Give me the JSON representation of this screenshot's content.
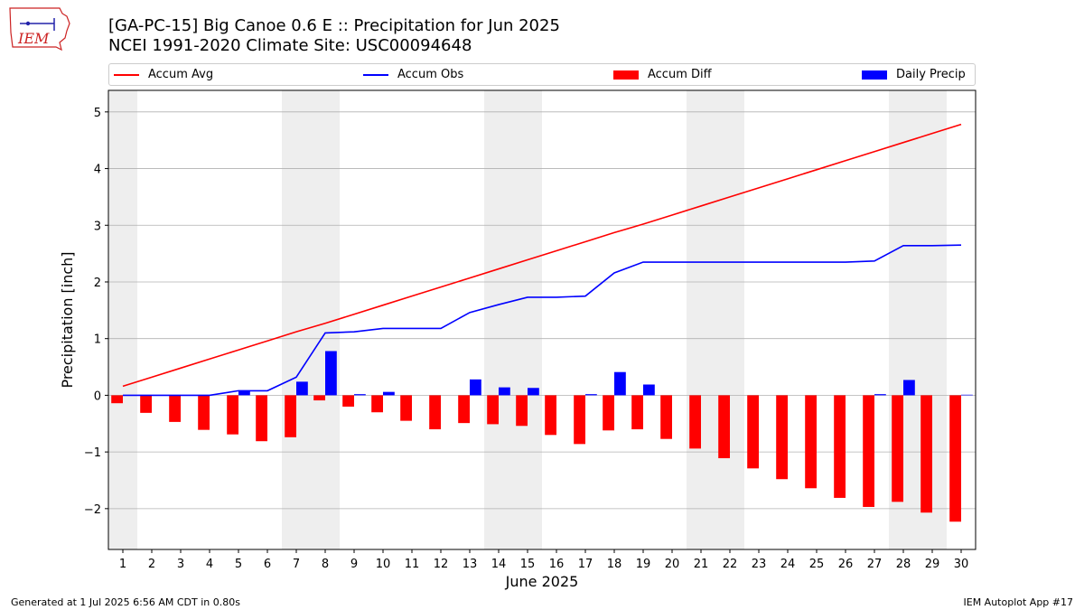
{
  "header": {
    "logo_text": "IEM",
    "title_line1": "[GA-PC-15] Big Canoe 0.6 E :: Precipitation for Jun 2025",
    "title_line2": "NCEI 1991-2020 Climate Site: USC00094648"
  },
  "colors": {
    "accum_avg": "#ff0000",
    "accum_obs": "#0000ff",
    "accum_diff": "#ff0000",
    "daily_precip": "#0000ff",
    "weekend_shading": "#eeeeee",
    "grid": "#b0b0b0",
    "logo": "#cc2222"
  },
  "legend": {
    "position": "top (outside plot)",
    "items": [
      {
        "label": "Accum Avg",
        "kind": "line",
        "color": "#ff0000"
      },
      {
        "label": "Accum Obs",
        "kind": "line",
        "color": "#0000ff"
      },
      {
        "label": "Accum Diff",
        "kind": "bar",
        "color": "#ff0000"
      },
      {
        "label": "Daily Precip",
        "kind": "bar",
        "color": "#0000ff"
      }
    ]
  },
  "footer": {
    "left": "Generated at 1 Jul 2025 6:56 AM CDT in 0.80s",
    "right": "IEM Autoplot App #17"
  },
  "chart_data": {
    "type": "bar",
    "title": "[GA-PC-15] Big Canoe 0.6 E :: Precipitation for Jun 2025",
    "subtitle": "NCEI 1991-2020 Climate Site: USC00094648",
    "xlabel": "June 2025",
    "ylabel": "Precipitation [inch]",
    "xlim": [
      0.5,
      30.5
    ],
    "ylim": [
      -2.72,
      5.38
    ],
    "yticks": [
      -2,
      -1,
      0,
      1,
      2,
      3,
      4,
      5
    ],
    "grid": "horizontal",
    "categories": [
      1,
      2,
      3,
      4,
      5,
      6,
      7,
      8,
      9,
      10,
      11,
      12,
      13,
      14,
      15,
      16,
      17,
      18,
      19,
      20,
      21,
      22,
      23,
      24,
      25,
      26,
      27,
      28,
      29,
      30
    ],
    "shaded_days": [
      1,
      7,
      8,
      14,
      15,
      21,
      22,
      28,
      29
    ],
    "series": [
      {
        "name": "Accum Avg",
        "kind": "line",
        "values": [
          0.16,
          0.32,
          0.48,
          0.64,
          0.8,
          0.96,
          1.12,
          1.27,
          1.43,
          1.59,
          1.75,
          1.91,
          2.07,
          2.23,
          2.39,
          2.55,
          2.71,
          2.87,
          3.02,
          3.18,
          3.34,
          3.5,
          3.66,
          3.82,
          3.98,
          4.14,
          4.3,
          4.46,
          4.62,
          4.78
        ]
      },
      {
        "name": "Accum Obs",
        "kind": "line",
        "values": [
          0.0,
          0.0,
          0.0,
          0.0,
          0.08,
          0.08,
          0.32,
          1.1,
          1.12,
          1.18,
          1.18,
          1.18,
          1.46,
          1.6,
          1.73,
          1.73,
          1.75,
          2.16,
          2.35,
          2.35,
          2.35,
          2.35,
          2.35,
          2.35,
          2.35,
          2.35,
          2.37,
          2.64,
          2.64,
          2.65
        ]
      },
      {
        "name": "Accum Diff",
        "kind": "bar",
        "values": [
          -0.14,
          -0.31,
          -0.47,
          -0.61,
          -0.69,
          -0.81,
          -0.74,
          -0.09,
          -0.2,
          -0.3,
          -0.45,
          -0.6,
          -0.49,
          -0.51,
          -0.54,
          -0.7,
          -0.86,
          -0.62,
          -0.6,
          -0.77,
          -0.94,
          -1.11,
          -1.29,
          -1.48,
          -1.64,
          -1.81,
          -1.97,
          -1.88,
          -2.07,
          -2.23
        ]
      },
      {
        "name": "Daily Precip",
        "kind": "bar",
        "values": [
          0.0,
          0.0,
          0.0,
          0.0,
          0.08,
          0.0,
          0.24,
          0.78,
          0.02,
          0.06,
          0.0,
          0.0,
          0.28,
          0.14,
          0.13,
          0.0,
          0.02,
          0.41,
          0.19,
          0.0,
          0.0,
          0.0,
          0.0,
          0.0,
          0.0,
          0.0,
          0.02,
          0.27,
          0.0,
          0.01
        ]
      }
    ]
  }
}
